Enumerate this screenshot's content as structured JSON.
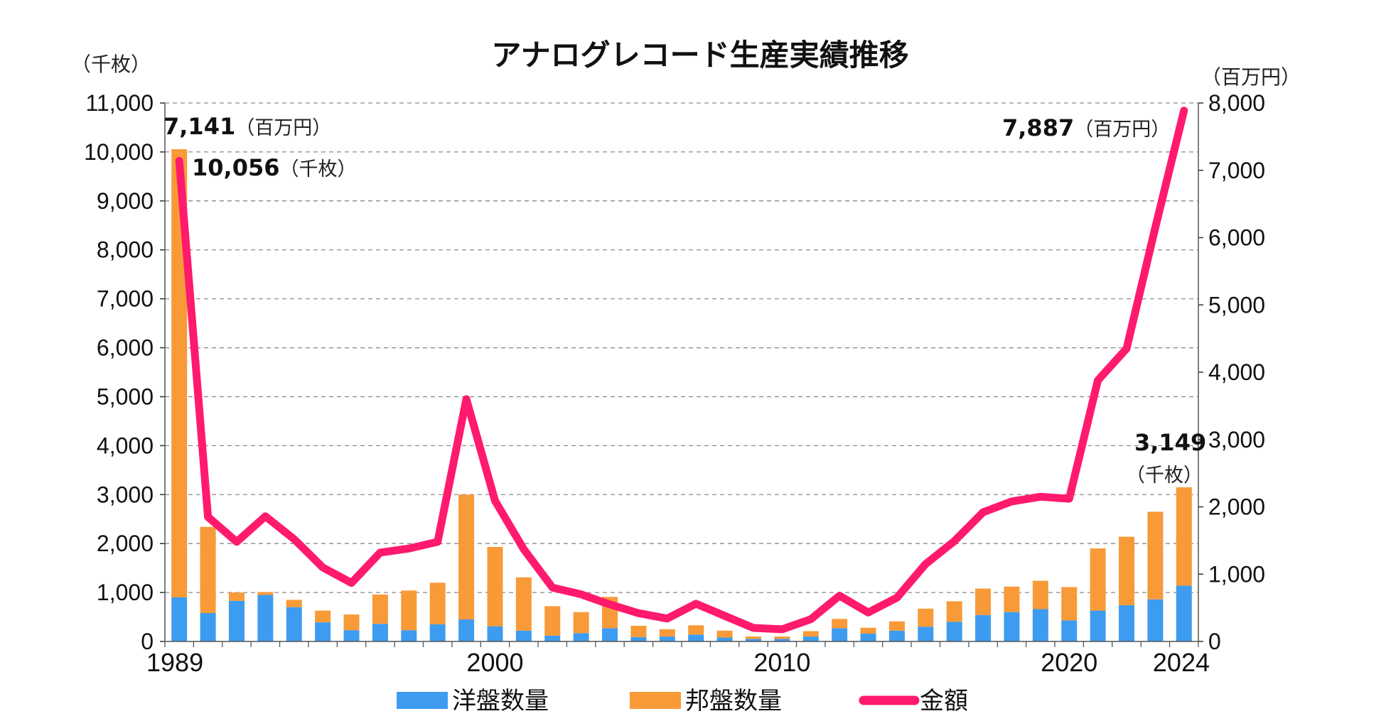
{
  "chart_data": {
    "type": "bar",
    "title": "アナログレコード生産実績推移",
    "left_axis_unit": "（千枚）",
    "right_axis_unit": "（百万円）",
    "ylim_left": [
      0,
      11000
    ],
    "ylim_right": [
      0,
      8000
    ],
    "left_ticks": [
      "0",
      "1,000",
      "2,000",
      "3,000",
      "4,000",
      "5,000",
      "6,000",
      "7,000",
      "8,000",
      "9,000",
      "10,000",
      "11,000"
    ],
    "right_ticks": [
      "0",
      "1,000",
      "2,000",
      "3,000",
      "4,000",
      "5,000",
      "6,000",
      "7,000",
      "8,000"
    ],
    "x_tick_labels": [
      {
        "year": 1989,
        "label": "1989"
      },
      {
        "year": 2000,
        "label": "2000"
      },
      {
        "year": 2010,
        "label": "2010"
      },
      {
        "year": 2020,
        "label": "2020"
      },
      {
        "year": 2024,
        "label": "2024"
      }
    ],
    "grid": true,
    "categories": [
      1989,
      1990,
      1991,
      1992,
      1993,
      1994,
      1995,
      1996,
      1997,
      1998,
      1999,
      2000,
      2001,
      2002,
      2003,
      2004,
      2005,
      2006,
      2007,
      2008,
      2009,
      2010,
      2011,
      2012,
      2013,
      2014,
      2015,
      2016,
      2017,
      2018,
      2019,
      2020,
      2021,
      2022,
      2023,
      2024
    ],
    "series": [
      {
        "name": "洋盤数量",
        "type": "bar",
        "axis": "left",
        "color": "#3d9cf0",
        "values": [
          900,
          580,
          830,
          950,
          700,
          390,
          230,
          360,
          230,
          350,
          450,
          310,
          220,
          120,
          170,
          270,
          90,
          100,
          140,
          80,
          50,
          50,
          100,
          270,
          160,
          220,
          300,
          400,
          540,
          600,
          660,
          430,
          630,
          740,
          860,
          1140
        ]
      },
      {
        "name": "邦盤数量",
        "type": "bar",
        "axis": "left",
        "color": "#f89a38",
        "values": [
          9156,
          1760,
          170,
          60,
          150,
          240,
          320,
          600,
          810,
          850,
          2550,
          1620,
          1090,
          600,
          430,
          640,
          230,
          150,
          190,
          140,
          50,
          50,
          110,
          190,
          120,
          190,
          370,
          420,
          540,
          520,
          580,
          680,
          1270,
          1400,
          1790,
          2009
        ]
      },
      {
        "name": "金額",
        "type": "line",
        "axis": "right",
        "color": "#ff1a6e",
        "values": [
          7141,
          1850,
          1480,
          1860,
          1520,
          1100,
          870,
          1320,
          1380,
          1480,
          3600,
          2090,
          1370,
          800,
          700,
          550,
          420,
          340,
          560,
          380,
          200,
          180,
          330,
          680,
          430,
          650,
          1150,
          1490,
          1920,
          2080,
          2150,
          2120,
          3880,
          4350,
          6150,
          7887
        ]
      }
    ],
    "annotations": [
      {
        "value": "7,141",
        "unit": "（百万円）"
      },
      {
        "value": "10,056",
        "unit": "（千枚）"
      },
      {
        "value": "7,887",
        "unit": "（百万円）"
      },
      {
        "value": "3,149",
        "unit": "（千枚）"
      }
    ],
    "legend": {
      "position": "bottom",
      "items": [
        "洋盤数量",
        "邦盤数量",
        "金額"
      ]
    }
  }
}
